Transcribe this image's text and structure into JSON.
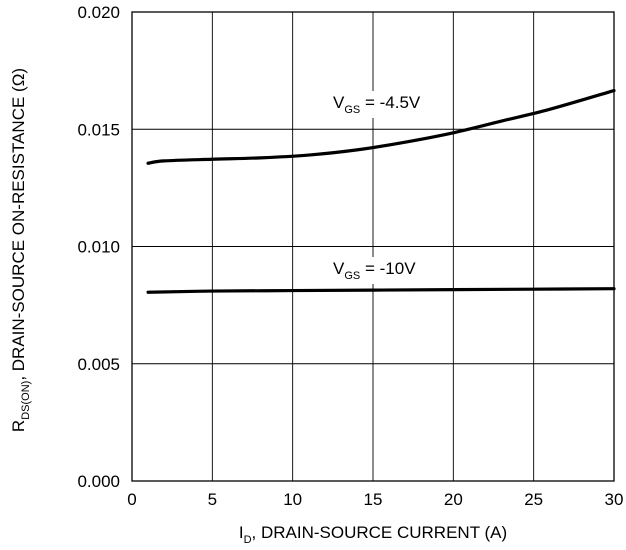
{
  "chart_data": {
    "type": "line",
    "xlabel": {
      "main": "I",
      "sub": "D",
      "rest": ", DRAIN-SOURCE CURRENT (A)"
    },
    "ylabel": {
      "main": "R",
      "sub": "DS(ON)",
      "rest": ", DRAIN-SOURCE ON-RESISTANCE (Ω)"
    },
    "xlim": [
      0,
      30
    ],
    "ylim": [
      0.0,
      0.02
    ],
    "x_ticks": [
      "0",
      "5",
      "10",
      "15",
      "20",
      "25",
      "30"
    ],
    "y_ticks": [
      "0.000",
      "0.005",
      "0.010",
      "0.015",
      "0.020"
    ],
    "grid": true,
    "series": [
      {
        "label": {
          "main": "V",
          "sub": "GS",
          "rest": " = -4.5V"
        },
        "x": [
          1,
          2,
          5,
          8,
          11,
          14,
          17,
          20,
          23,
          26,
          30
        ],
        "y": [
          0.01355,
          0.01365,
          0.01372,
          0.01378,
          0.0139,
          0.01412,
          0.01445,
          0.01485,
          0.01535,
          0.01585,
          0.01665
        ]
      },
      {
        "label": {
          "main": "V",
          "sub": "GS",
          "rest": " = -10V"
        },
        "x": [
          1,
          5,
          10,
          15,
          20,
          25,
          30
        ],
        "y": [
          0.00805,
          0.0081,
          0.00812,
          0.00814,
          0.00816,
          0.00818,
          0.0082
        ]
      }
    ]
  }
}
